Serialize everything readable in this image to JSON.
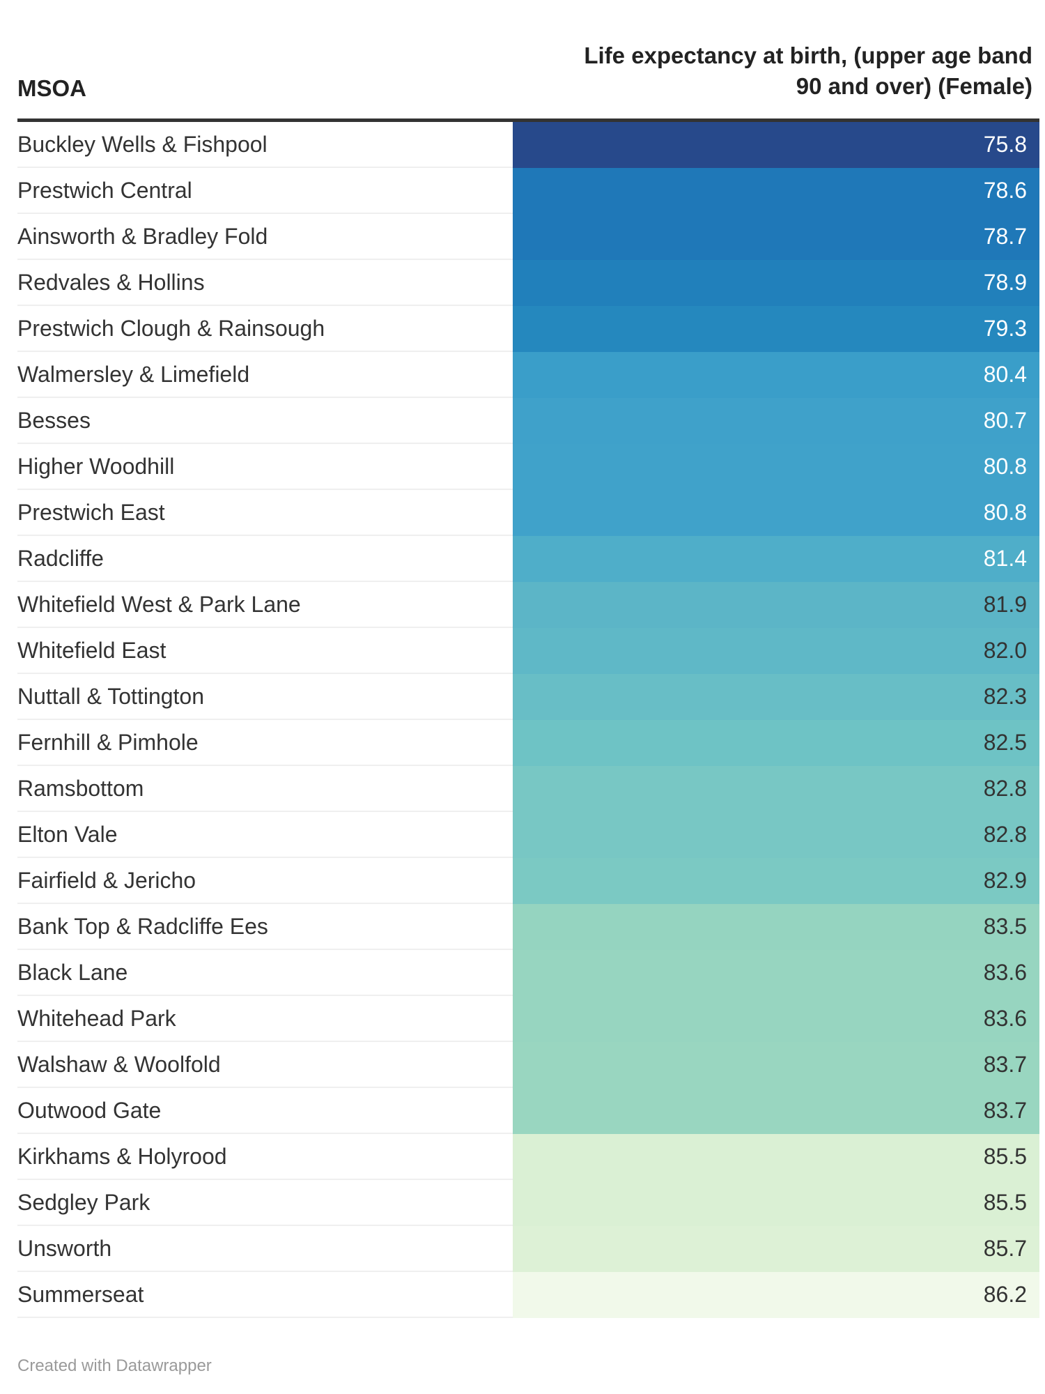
{
  "chart_data": {
    "type": "table",
    "columns": [
      "MSOA",
      "Life expectancy at birth, (upper age band 90 and over) (Female)"
    ],
    "header": {
      "label_column": "MSOA",
      "value_column_line1": "Life expectancy at birth, (upper age band",
      "value_column_line2": "90 and over) (Female)"
    },
    "rows": [
      {
        "name": "Buckley Wells & Fishpool",
        "value": "75.8",
        "color": "#27498b",
        "text_color": "#ffffff"
      },
      {
        "name": "Prestwich Central",
        "value": "78.6",
        "color": "#1f78b8",
        "text_color": "#ffffff"
      },
      {
        "name": "Ainsworth & Bradley Fold",
        "value": "78.7",
        "color": "#1f78b8",
        "text_color": "#ffffff"
      },
      {
        "name": "Redvales & Hollins",
        "value": "78.9",
        "color": "#2180bb",
        "text_color": "#ffffff"
      },
      {
        "name": "Prestwich Clough & Rainsough",
        "value": "79.3",
        "color": "#2588be",
        "text_color": "#ffffff"
      },
      {
        "name": "Walmersley & Limefield",
        "value": "80.4",
        "color": "#3a9ec9",
        "text_color": "#ffffff"
      },
      {
        "name": "Besses",
        "value": "80.7",
        "color": "#3fa1ca",
        "text_color": "#ffffff"
      },
      {
        "name": "Higher Woodhill",
        "value": "80.8",
        "color": "#40a2ca",
        "text_color": "#ffffff"
      },
      {
        "name": "Prestwich East",
        "value": "80.8",
        "color": "#40a2ca",
        "text_color": "#ffffff"
      },
      {
        "name": "Radcliffe",
        "value": "81.4",
        "color": "#4faec9",
        "text_color": "#ffffff"
      },
      {
        "name": "Whitefield West & Park Lane",
        "value": "81.9",
        "color": "#5cb5c7",
        "text_color": "#333333"
      },
      {
        "name": "Whitefield East",
        "value": "82.0",
        "color": "#5fb8c7",
        "text_color": "#333333"
      },
      {
        "name": "Nuttall & Tottington",
        "value": "82.3",
        "color": "#68bec6",
        "text_color": "#333333"
      },
      {
        "name": "Fernhill & Pimhole",
        "value": "82.5",
        "color": "#6ec3c5",
        "text_color": "#333333"
      },
      {
        "name": "Ramsbottom",
        "value": "82.8",
        "color": "#78c7c4",
        "text_color": "#333333"
      },
      {
        "name": "Elton Vale",
        "value": "82.8",
        "color": "#78c7c4",
        "text_color": "#333333"
      },
      {
        "name": "Fairfield & Jericho",
        "value": "82.9",
        "color": "#7bc9c3",
        "text_color": "#333333"
      },
      {
        "name": "Bank Top & Radcliffe Ees",
        "value": "83.5",
        "color": "#95d4c0",
        "text_color": "#333333"
      },
      {
        "name": "Black Lane",
        "value": "83.6",
        "color": "#97d5c0",
        "text_color": "#333333"
      },
      {
        "name": "Whitehead Park",
        "value": "83.6",
        "color": "#97d5c0",
        "text_color": "#333333"
      },
      {
        "name": "Walshaw & Woolfold",
        "value": "83.7",
        "color": "#99d6c0",
        "text_color": "#333333"
      },
      {
        "name": "Outwood Gate",
        "value": "83.7",
        "color": "#99d6c0",
        "text_color": "#333333"
      },
      {
        "name": "Kirkhams & Holyrood",
        "value": "85.5",
        "color": "#daf0d4",
        "text_color": "#333333"
      },
      {
        "name": "Sedgley Park",
        "value": "85.5",
        "color": "#daf0d4",
        "text_color": "#333333"
      },
      {
        "name": "Unsworth",
        "value": "85.7",
        "color": "#ddf1d6",
        "text_color": "#333333"
      },
      {
        "name": "Summerseat",
        "value": "86.2",
        "color": "#f1f9ea",
        "text_color": "#333333"
      }
    ]
  },
  "footer": {
    "credit": "Created with Datawrapper"
  }
}
